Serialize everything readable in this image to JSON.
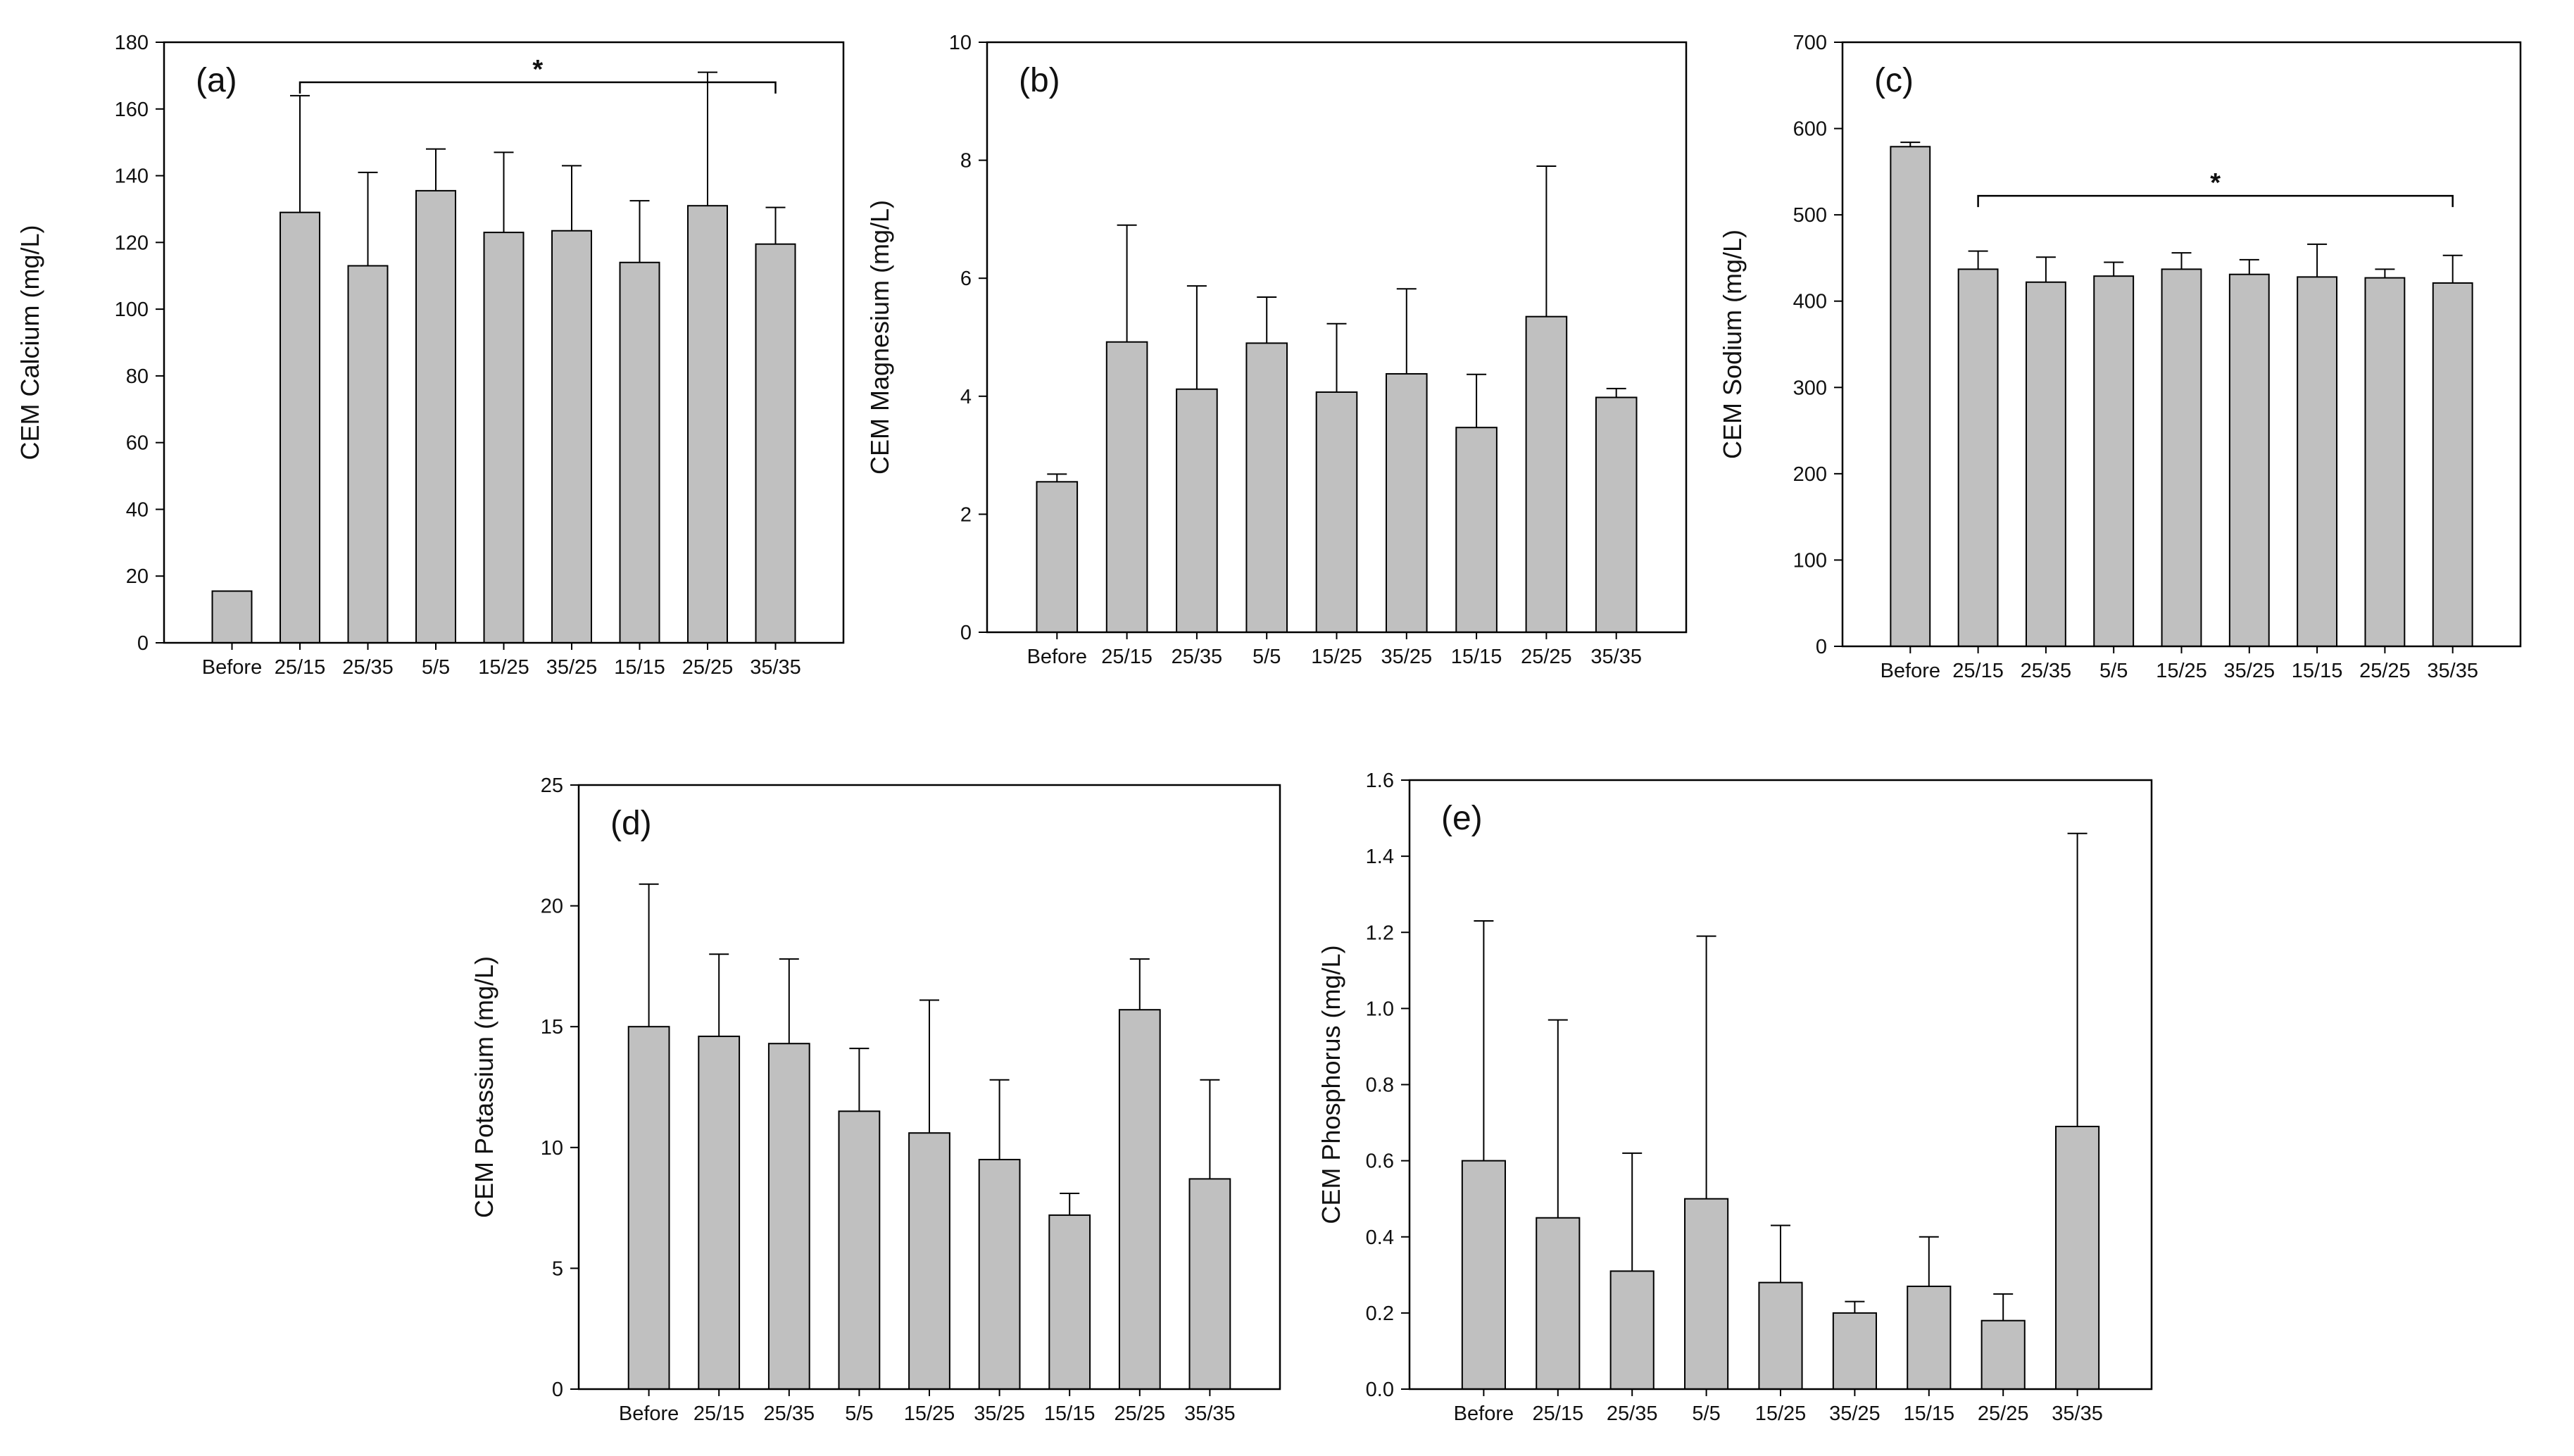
{
  "colors": {
    "bar_fill": "#c0c0c0",
    "bar_stroke": "#000000",
    "axis": "#000000"
  },
  "chart_data": [
    {
      "id": "a",
      "type": "bar",
      "panel_label": "(a)",
      "ylabel": "CEM Calcium (mg/L)",
      "categories": [
        "Before",
        "25/15",
        "25/35",
        "5/5",
        "15/25",
        "35/25",
        "15/15",
        "25/25",
        "35/35"
      ],
      "values": [
        15.5,
        129,
        113,
        135.5,
        123,
        123.5,
        114,
        131,
        119.5
      ],
      "error_upper": [
        15.5,
        164,
        141,
        148,
        147,
        143,
        132.5,
        171,
        130.5
      ],
      "ylim": [
        0,
        180
      ],
      "yticks": [
        "0",
        "20",
        "40",
        "60",
        "80",
        "100",
        "120",
        "140",
        "160",
        "180"
      ],
      "significance": {
        "marker": "*",
        "from": "25/15",
        "to": "35/35",
        "y": 168
      }
    },
    {
      "id": "b",
      "type": "bar",
      "panel_label": "(b)",
      "ylabel": "CEM Magnesium (mg/L)",
      "categories": [
        "Before",
        "25/15",
        "25/35",
        "5/5",
        "15/25",
        "35/25",
        "15/15",
        "25/25",
        "35/35"
      ],
      "values": [
        2.55,
        4.92,
        4.12,
        4.9,
        4.07,
        4.38,
        3.47,
        5.35,
        3.98
      ],
      "error_upper": [
        2.68,
        6.9,
        5.87,
        5.68,
        5.23,
        5.82,
        4.37,
        7.9,
        4.13
      ],
      "ylim": [
        0,
        10
      ],
      "yticks": [
        "0",
        "2",
        "4",
        "6",
        "8",
        "10"
      ]
    },
    {
      "id": "c",
      "type": "bar",
      "panel_label": "(c)",
      "ylabel": "CEM Sodium (mg/L)",
      "categories": [
        "Before",
        "25/15",
        "25/35",
        "5/5",
        "15/25",
        "35/25",
        "15/15",
        "25/25",
        "35/35"
      ],
      "values": [
        579,
        437,
        422,
        429,
        437,
        431,
        428,
        427,
        421
      ],
      "error_upper": [
        584,
        458,
        451,
        445,
        456,
        448,
        466,
        437,
        453
      ],
      "ylim": [
        0,
        700
      ],
      "yticks": [
        "0",
        "100",
        "200",
        "300",
        "400",
        "500",
        "600",
        "700"
      ],
      "significance": {
        "marker": "*",
        "from": "25/15",
        "to": "35/35",
        "y": 522
      }
    },
    {
      "id": "d",
      "type": "bar",
      "panel_label": "(d)",
      "ylabel": "CEM Potassium (mg/L)",
      "categories": [
        "Before",
        "25/15",
        "25/35",
        "5/5",
        "15/25",
        "35/25",
        "15/15",
        "25/25",
        "35/35"
      ],
      "values": [
        15,
        14.6,
        14.3,
        11.5,
        10.6,
        9.5,
        7.2,
        15.7,
        8.7
      ],
      "error_upper": [
        20.9,
        18,
        17.8,
        14.1,
        16.1,
        12.8,
        8.1,
        17.8,
        12.8
      ],
      "ylim": [
        0,
        25
      ],
      "yticks": [
        "0",
        "5",
        "10",
        "15",
        "20",
        "25"
      ]
    },
    {
      "id": "e",
      "type": "bar",
      "panel_label": "(e)",
      "ylabel": "CEM Phosphorus (mg/L)",
      "categories": [
        "Before",
        "25/15",
        "25/35",
        "5/5",
        "15/25",
        "35/25",
        "15/15",
        "25/25",
        "35/35"
      ],
      "values": [
        0.6,
        0.45,
        0.31,
        0.5,
        0.28,
        0.2,
        0.27,
        0.18,
        0.69
      ],
      "error_upper": [
        1.23,
        0.97,
        0.62,
        1.19,
        0.43,
        0.23,
        0.4,
        0.25,
        1.46
      ],
      "ylim": [
        0,
        1.6
      ],
      "yticks": [
        "0.0",
        "0.2",
        "0.4",
        "0.6",
        "0.8",
        "1.0",
        "1.2",
        "1.4",
        "1.6"
      ]
    }
  ]
}
